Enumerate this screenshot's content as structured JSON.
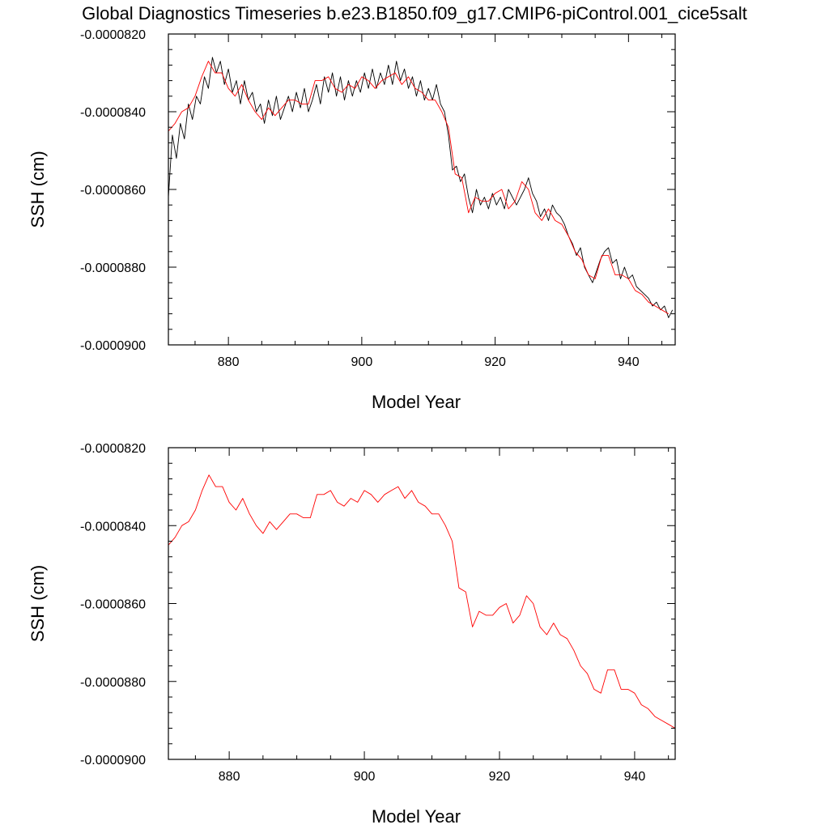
{
  "title": "Global Diagnostics Timeseries b.e23.B1850.f09_g17.CMIP6-piControl.001_cice5salt",
  "colors": {
    "monthly": "#000000",
    "annual": "#ff0000",
    "axes": "#000000"
  },
  "chart_data": [
    {
      "type": "line",
      "xlabel": "Model Year",
      "ylabel": "SSH (cm)",
      "xlim": [
        871,
        947
      ],
      "ylim": [
        -9e-05,
        -8.2e-05
      ],
      "xticks": [
        880,
        900,
        920,
        940
      ],
      "xtick_labels": [
        "880",
        "900",
        "920",
        "940"
      ],
      "yticks": [
        -8.2e-05,
        -8.4e-05,
        -8.6e-05,
        -8.8e-05,
        -9e-05
      ],
      "ytick_labels": [
        "-0.0000820",
        "-0.0000840",
        "-0.0000860",
        "-0.0000880",
        "-0.0000900"
      ],
      "grid": false,
      "series": [
        {
          "color": "#000000",
          "x": [
            871.0,
            871.6,
            872.2,
            872.8,
            873.4,
            874.0,
            874.6,
            875.2,
            875.8,
            876.4,
            877.0,
            877.6,
            878.2,
            878.8,
            879.4,
            880.0,
            880.6,
            881.2,
            881.8,
            882.4,
            883.0,
            883.6,
            884.2,
            884.8,
            885.4,
            886.0,
            886.6,
            887.2,
            887.8,
            888.4,
            889.0,
            889.6,
            890.2,
            890.8,
            891.4,
            892.0,
            892.6,
            893.2,
            893.8,
            894.4,
            895.0,
            895.6,
            896.2,
            896.8,
            897.4,
            898.0,
            898.6,
            899.2,
            899.8,
            900.4,
            901.0,
            901.6,
            902.2,
            902.8,
            903.4,
            904.0,
            904.6,
            905.2,
            905.8,
            906.4,
            907.0,
            907.6,
            908.2,
            908.8,
            909.4,
            910.0,
            910.6,
            911.2,
            911.8,
            912.4,
            913.0,
            913.6,
            914.2,
            914.8,
            915.4,
            916.0,
            916.6,
            917.2,
            917.8,
            918.4,
            919.0,
            919.6,
            920.2,
            920.8,
            921.4,
            922.0,
            922.6,
            923.2,
            923.8,
            924.4,
            925.0,
            925.6,
            926.2,
            926.8,
            927.4,
            928.0,
            928.6,
            929.2,
            929.8,
            930.4,
            931.0,
            931.6,
            932.2,
            932.8,
            933.4,
            934.0,
            934.6,
            935.2,
            935.8,
            936.4,
            937.0,
            937.6,
            938.2,
            938.8,
            939.4,
            940.0,
            940.6,
            941.2,
            941.8,
            942.4,
            943.0,
            943.6,
            944.2,
            944.8,
            945.4,
            946.0,
            946.6
          ],
          "y": [
            -8.62e-05,
            -8.46e-05,
            -8.52e-05,
            -8.43e-05,
            -8.47e-05,
            -8.38e-05,
            -8.42e-05,
            -8.36e-05,
            -8.38e-05,
            -8.31e-05,
            -8.34e-05,
            -8.26e-05,
            -8.3e-05,
            -8.27e-05,
            -8.33e-05,
            -8.29e-05,
            -8.35e-05,
            -8.32e-05,
            -8.38e-05,
            -8.32e-05,
            -8.37e-05,
            -8.35e-05,
            -8.4e-05,
            -8.38e-05,
            -8.43e-05,
            -8.37e-05,
            -8.41e-05,
            -8.36e-05,
            -8.42e-05,
            -8.39e-05,
            -8.36e-05,
            -8.4e-05,
            -8.35e-05,
            -8.39e-05,
            -8.34e-05,
            -8.4e-05,
            -8.37e-05,
            -8.33e-05,
            -8.38e-05,
            -8.31e-05,
            -8.35e-05,
            -8.3e-05,
            -8.36e-05,
            -8.31e-05,
            -8.37e-05,
            -8.32e-05,
            -8.36e-05,
            -8.32e-05,
            -8.35e-05,
            -8.3e-05,
            -8.34e-05,
            -8.29e-05,
            -8.34e-05,
            -8.3e-05,
            -8.33e-05,
            -8.28e-05,
            -8.33e-05,
            -8.27e-05,
            -8.32e-05,
            -8.29e-05,
            -8.34e-05,
            -8.31e-05,
            -8.36e-05,
            -8.32e-05,
            -8.37e-05,
            -8.34e-05,
            -8.37e-05,
            -8.33e-05,
            -8.38e-05,
            -8.4e-05,
            -8.46e-05,
            -8.55e-05,
            -8.54e-05,
            -8.58e-05,
            -8.56e-05,
            -8.62e-05,
            -8.66e-05,
            -8.6e-05,
            -8.64e-05,
            -8.62e-05,
            -8.65e-05,
            -8.61e-05,
            -8.64e-05,
            -8.62e-05,
            -8.65e-05,
            -8.6e-05,
            -8.62e-05,
            -8.64e-05,
            -8.62e-05,
            -8.6e-05,
            -8.57e-05,
            -8.61e-05,
            -8.63e-05,
            -8.67e-05,
            -8.65e-05,
            -8.68e-05,
            -8.64e-05,
            -8.66e-05,
            -8.67e-05,
            -8.69e-05,
            -8.72e-05,
            -8.74e-05,
            -8.77e-05,
            -8.75e-05,
            -8.8e-05,
            -8.82e-05,
            -8.84e-05,
            -8.81e-05,
            -8.78e-05,
            -8.76e-05,
            -8.75e-05,
            -8.79e-05,
            -8.78e-05,
            -8.83e-05,
            -8.8e-05,
            -8.83e-05,
            -8.82e-05,
            -8.85e-05,
            -8.86e-05,
            -8.87e-05,
            -8.88e-05,
            -8.9e-05,
            -8.89e-05,
            -8.91e-05,
            -8.9e-05,
            -8.93e-05,
            -8.91e-05
          ]
        },
        {
          "color": "#ff0000",
          "x": [
            871,
            872,
            873,
            874,
            875,
            876,
            877,
            878,
            879,
            880,
            881,
            882,
            883,
            884,
            885,
            886,
            887,
            888,
            889,
            890,
            891,
            892,
            893,
            894,
            895,
            896,
            897,
            898,
            899,
            900,
            901,
            902,
            903,
            904,
            905,
            906,
            907,
            908,
            909,
            910,
            911,
            912,
            913,
            914,
            915,
            916,
            917,
            918,
            919,
            920,
            921,
            922,
            923,
            924,
            925,
            926,
            927,
            928,
            929,
            930,
            931,
            932,
            933,
            934,
            935,
            936,
            937,
            938,
            939,
            940,
            941,
            942,
            943,
            944,
            945,
            946
          ],
          "y": [
            -8.45e-05,
            -8.43e-05,
            -8.4e-05,
            -8.39e-05,
            -8.36e-05,
            -8.31e-05,
            -8.27e-05,
            -8.3e-05,
            -8.3e-05,
            -8.34e-05,
            -8.36e-05,
            -8.33e-05,
            -8.37e-05,
            -8.4e-05,
            -8.42e-05,
            -8.39e-05,
            -8.41e-05,
            -8.39e-05,
            -8.37e-05,
            -8.37e-05,
            -8.38e-05,
            -8.38e-05,
            -8.32e-05,
            -8.32e-05,
            -8.31e-05,
            -8.34e-05,
            -8.35e-05,
            -8.33e-05,
            -8.34e-05,
            -8.31e-05,
            -8.32e-05,
            -8.34e-05,
            -8.32e-05,
            -8.31e-05,
            -8.3e-05,
            -8.33e-05,
            -8.31e-05,
            -8.34e-05,
            -8.35e-05,
            -8.37e-05,
            -8.37e-05,
            -8.4e-05,
            -8.44e-05,
            -8.56e-05,
            -8.57e-05,
            -8.66e-05,
            -8.62e-05,
            -8.63e-05,
            -8.63e-05,
            -8.61e-05,
            -8.6e-05,
            -8.65e-05,
            -8.63e-05,
            -8.58e-05,
            -8.6e-05,
            -8.66e-05,
            -8.68e-05,
            -8.65e-05,
            -8.68e-05,
            -8.69e-05,
            -8.72e-05,
            -8.76e-05,
            -8.78e-05,
            -8.82e-05,
            -8.83e-05,
            -8.77e-05,
            -8.77e-05,
            -8.82e-05,
            -8.82e-05,
            -8.83e-05,
            -8.86e-05,
            -8.87e-05,
            -8.89e-05,
            -8.9e-05,
            -8.91e-05,
            -8.92e-05
          ]
        }
      ]
    },
    {
      "type": "line",
      "xlabel": "Model Year",
      "ylabel": "SSH (cm)",
      "xlim": [
        871,
        946
      ],
      "ylim": [
        -9e-05,
        -8.2e-05
      ],
      "xticks": [
        880,
        900,
        920,
        940
      ],
      "xtick_labels": [
        "880",
        "900",
        "920",
        "940"
      ],
      "yticks": [
        -8.2e-05,
        -8.4e-05,
        -8.6e-05,
        -8.8e-05,
        -9e-05
      ],
      "ytick_labels": [
        "-0.0000820",
        "-0.0000840",
        "-0.0000860",
        "-0.0000880",
        "-0.0000900"
      ],
      "grid": false,
      "series": [
        {
          "color": "#ff0000",
          "x": [
            871,
            872,
            873,
            874,
            875,
            876,
            877,
            878,
            879,
            880,
            881,
            882,
            883,
            884,
            885,
            886,
            887,
            888,
            889,
            890,
            891,
            892,
            893,
            894,
            895,
            896,
            897,
            898,
            899,
            900,
            901,
            902,
            903,
            904,
            905,
            906,
            907,
            908,
            909,
            910,
            911,
            912,
            913,
            914,
            915,
            916,
            917,
            918,
            919,
            920,
            921,
            922,
            923,
            924,
            925,
            926,
            927,
            928,
            929,
            930,
            931,
            932,
            933,
            934,
            935,
            936,
            937,
            938,
            939,
            940,
            941,
            942,
            943,
            944,
            945,
            946
          ],
          "y": [
            -8.45e-05,
            -8.43e-05,
            -8.4e-05,
            -8.39e-05,
            -8.36e-05,
            -8.31e-05,
            -8.27e-05,
            -8.3e-05,
            -8.3e-05,
            -8.34e-05,
            -8.36e-05,
            -8.33e-05,
            -8.37e-05,
            -8.4e-05,
            -8.42e-05,
            -8.39e-05,
            -8.41e-05,
            -8.39e-05,
            -8.37e-05,
            -8.37e-05,
            -8.38e-05,
            -8.38e-05,
            -8.32e-05,
            -8.32e-05,
            -8.31e-05,
            -8.34e-05,
            -8.35e-05,
            -8.33e-05,
            -8.34e-05,
            -8.31e-05,
            -8.32e-05,
            -8.34e-05,
            -8.32e-05,
            -8.31e-05,
            -8.3e-05,
            -8.33e-05,
            -8.31e-05,
            -8.34e-05,
            -8.35e-05,
            -8.37e-05,
            -8.37e-05,
            -8.4e-05,
            -8.44e-05,
            -8.56e-05,
            -8.57e-05,
            -8.66e-05,
            -8.62e-05,
            -8.63e-05,
            -8.63e-05,
            -8.61e-05,
            -8.6e-05,
            -8.65e-05,
            -8.63e-05,
            -8.58e-05,
            -8.6e-05,
            -8.66e-05,
            -8.68e-05,
            -8.65e-05,
            -8.68e-05,
            -8.69e-05,
            -8.72e-05,
            -8.76e-05,
            -8.78e-05,
            -8.82e-05,
            -8.83e-05,
            -8.77e-05,
            -8.77e-05,
            -8.82e-05,
            -8.82e-05,
            -8.83e-05,
            -8.86e-05,
            -8.87e-05,
            -8.89e-05,
            -8.9e-05,
            -8.91e-05,
            -8.92e-05
          ]
        }
      ]
    }
  ]
}
